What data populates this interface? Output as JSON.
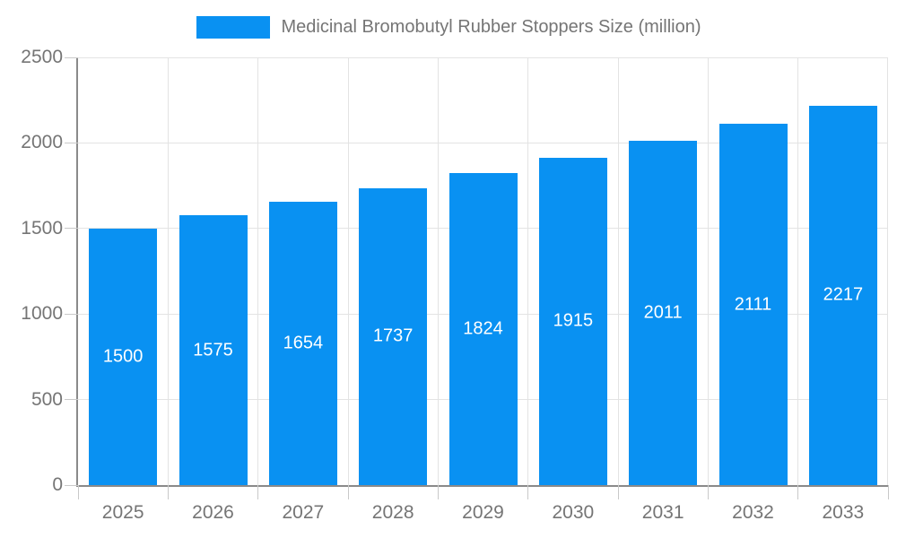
{
  "chart_data": {
    "type": "bar",
    "title": "Medicinal Bromobutyl Rubber Stoppers Size (million)",
    "categories": [
      "2025",
      "2026",
      "2027",
      "2028",
      "2029",
      "2030",
      "2031",
      "2032",
      "2033"
    ],
    "values": [
      1500,
      1575,
      1654,
      1737,
      1824,
      1915,
      2011,
      2111,
      2217
    ],
    "xlabel": "",
    "ylabel": "",
    "ylim": [
      0,
      2500
    ],
    "yticks": [
      0,
      500,
      1000,
      1500,
      2000,
      2500
    ],
    "grid": true,
    "legend_position": "top-center",
    "bar_labels_inside": true,
    "colors": {
      "bar": "#0991f2",
      "bar_label": "#ffffff",
      "axis_text": "#757575",
      "title_text": "#757575",
      "gridline": "#e3e3e3",
      "tick": "#c9c9c9",
      "axis_line": "#8a8a8a",
      "background": "#ffffff"
    }
  }
}
